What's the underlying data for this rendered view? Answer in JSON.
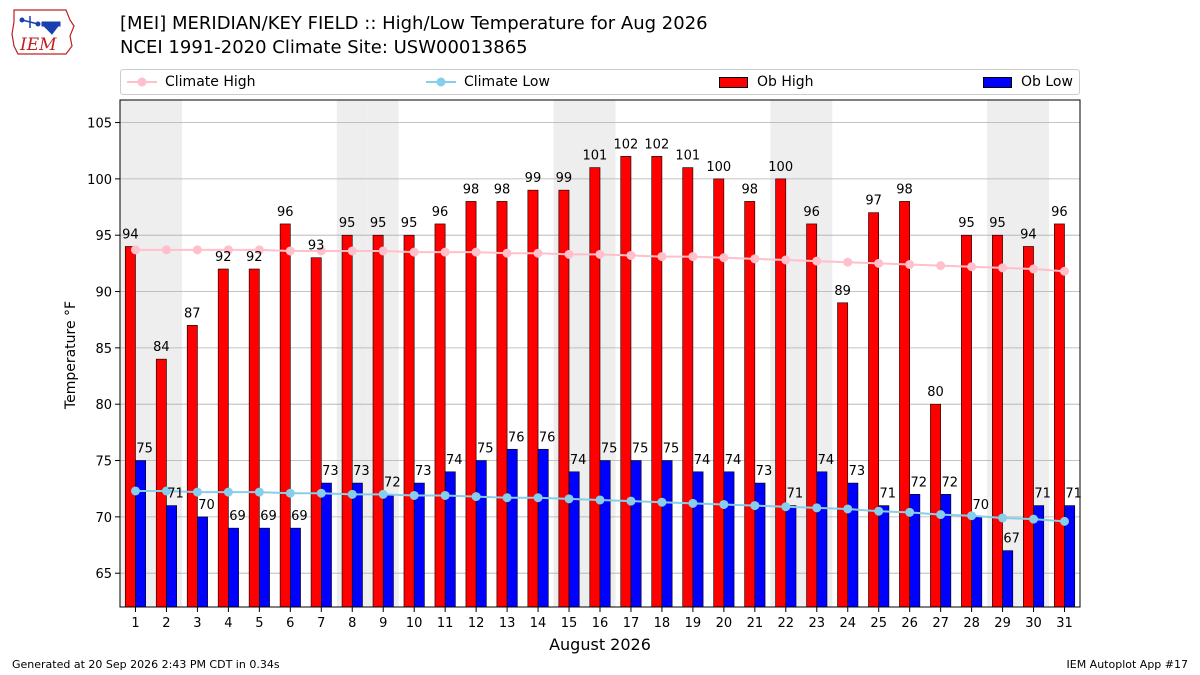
{
  "header": {
    "title_line1": "[MEI] MERIDIAN/KEY FIELD :: High/Low Temperature for Aug 2026",
    "title_line2": "NCEI 1991-2020 Climate Site: USW00013865",
    "logo_text": "IEM"
  },
  "footer": {
    "generated": "Generated at 20 Sep 2026 2:43 PM CDT in 0.34s",
    "app": "IEM Autoplot App #17"
  },
  "colors": {
    "ob_high": "#ff0000",
    "ob_low": "#0000ff",
    "climate_high": "#ffc0cb",
    "climate_low": "#87ceeb",
    "weekend_band": "#eeeeee"
  },
  "chart_data": {
    "type": "bar",
    "xlabel": "August 2026",
    "ylabel": "Temperature °F",
    "ylim": [
      62,
      107
    ],
    "yticks": [
      65,
      70,
      75,
      80,
      85,
      90,
      95,
      100,
      105
    ],
    "grid": true,
    "legend_position": "top",
    "categories": [
      "1",
      "2",
      "3",
      "4",
      "5",
      "6",
      "7",
      "8",
      "9",
      "10",
      "11",
      "12",
      "13",
      "14",
      "15",
      "16",
      "17",
      "18",
      "19",
      "20",
      "21",
      "22",
      "23",
      "24",
      "25",
      "26",
      "27",
      "28",
      "29",
      "30",
      "31"
    ],
    "shaded_days": [
      1,
      2,
      8,
      9,
      15,
      16,
      22,
      23,
      29,
      30
    ],
    "series": [
      {
        "name": "Climate High",
        "kind": "line",
        "values": [
          93.7,
          93.7,
          93.7,
          93.7,
          93.7,
          93.6,
          93.6,
          93.6,
          93.6,
          93.5,
          93.5,
          93.5,
          93.4,
          93.4,
          93.3,
          93.3,
          93.2,
          93.1,
          93.1,
          93.0,
          92.9,
          92.8,
          92.7,
          92.6,
          92.5,
          92.4,
          92.3,
          92.2,
          92.1,
          92.0,
          91.8
        ]
      },
      {
        "name": "Climate Low",
        "kind": "line",
        "values": [
          72.3,
          72.3,
          72.2,
          72.2,
          72.2,
          72.1,
          72.1,
          72.0,
          72.0,
          71.9,
          71.9,
          71.8,
          71.7,
          71.7,
          71.6,
          71.5,
          71.4,
          71.3,
          71.2,
          71.1,
          71.0,
          70.9,
          70.8,
          70.7,
          70.5,
          70.4,
          70.2,
          70.1,
          69.9,
          69.8,
          69.6
        ]
      },
      {
        "name": "Ob High",
        "kind": "bar",
        "values": [
          94,
          84,
          87,
          92,
          92,
          96,
          93,
          95,
          95,
          95,
          96,
          98,
          98,
          99,
          99,
          101,
          102,
          102,
          101,
          100,
          98,
          100,
          96,
          89,
          97,
          98,
          80,
          95,
          95,
          94,
          96
        ]
      },
      {
        "name": "Ob Low",
        "kind": "bar",
        "values": [
          75,
          71,
          70,
          69,
          69,
          69,
          73,
          73,
          72,
          73,
          74,
          75,
          76,
          76,
          74,
          75,
          75,
          75,
          74,
          74,
          73,
          71,
          74,
          73,
          71,
          72,
          72,
          70,
          67,
          71,
          71
        ]
      }
    ]
  }
}
